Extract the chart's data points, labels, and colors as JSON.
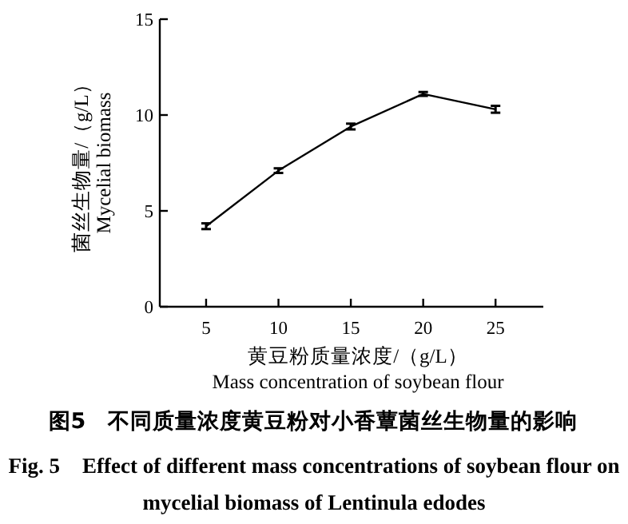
{
  "chart_data": {
    "type": "line",
    "title": "图5　不同质量浓度黄豆粉对小香蕈菌丝生物量的影响",
    "subtitle": "Fig. 5　Effect of different mass concentrations of soybean flour on mycelial biomass of Lentinula edodes",
    "xlabel": "黄豆粉质量浓度/（g/L）\nMass concentration of soybean flour",
    "ylabel": "菌丝生物量/（g/L）\nMycelial biomass",
    "x": [
      5,
      10,
      15,
      20,
      25
    ],
    "series": [
      {
        "color": "#000000",
        "values": [
          4.2,
          7.1,
          9.4,
          11.1,
          10.3
        ],
        "errors": [
          0.15,
          0.12,
          0.15,
          0.1,
          0.18
        ]
      }
    ],
    "xlim": [
      1.8,
      28.3
    ],
    "xticks": [
      5,
      10,
      15,
      20,
      25
    ],
    "ylim": [
      0,
      15
    ],
    "yticks": [
      0,
      5,
      10,
      15
    ],
    "grid": false,
    "marker": "none",
    "line_style": "solid"
  }
}
